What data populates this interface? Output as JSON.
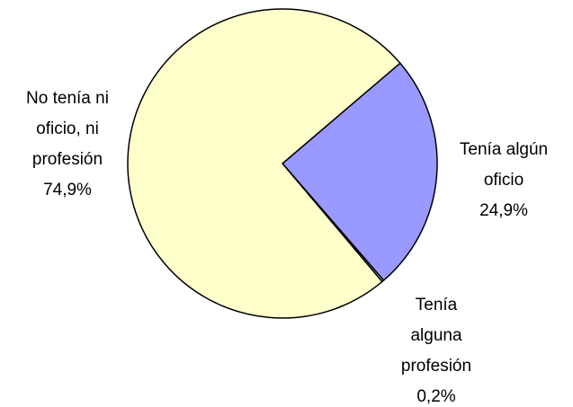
{
  "chart_data": {
    "type": "pie",
    "categories": [
      [
        "Tenía algún",
        "oficio"
      ],
      [
        "Tenía",
        "alguna",
        "profesión"
      ],
      [
        "No tenía ni",
        "oficio, ni",
        "profesión"
      ]
    ],
    "values": [
      24.9,
      0.2,
      74.9
    ],
    "value_labels": [
      "24,9%",
      "0,2%",
      "74,9%"
    ],
    "colors": [
      "#9999ff",
      "#ccffff",
      "#ffffcc"
    ]
  }
}
